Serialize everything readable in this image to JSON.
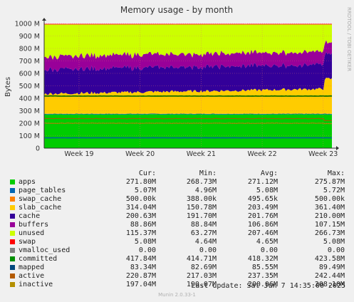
{
  "chart_data": {
    "type": "area",
    "title": "Memory usage - by month",
    "ylabel": "Bytes",
    "watermark": "RRDTOOL / TOBI OETIKER",
    "ylim": [
      0,
      1000000000
    ],
    "yticks": [
      {
        "v": 0,
        "label": "0"
      },
      {
        "v": 100000000,
        "label": "100 M"
      },
      {
        "v": 200000000,
        "label": "200 M"
      },
      {
        "v": 300000000,
        "label": "300 M"
      },
      {
        "v": 400000000,
        "label": "400 M"
      },
      {
        "v": 500000000,
        "label": "500 M"
      },
      {
        "v": 600000000,
        "label": "600 M"
      },
      {
        "v": 700000000,
        "label": "700 M"
      },
      {
        "v": 800000000,
        "label": "800 M"
      },
      {
        "v": 900000000,
        "label": "900 M"
      },
      {
        "v": 1000000000,
        "label": "1000 M"
      }
    ],
    "xlim": [
      0,
      33
    ],
    "xticks": [
      {
        "v": 4,
        "label": "Week 19"
      },
      {
        "v": 11,
        "label": "Week 20"
      },
      {
        "v": 18,
        "label": "Week 21"
      },
      {
        "v": 25,
        "label": "Week 22"
      },
      {
        "v": 32,
        "label": "Week 23"
      }
    ],
    "stacked_series": [
      {
        "name": "apps",
        "color": "#00cc00",
        "base": 271,
        "var": 4
      },
      {
        "name": "page_tables",
        "color": "#0066b3",
        "base": 5,
        "var": 0.3
      },
      {
        "name": "swap_cache",
        "color": "#ff8000",
        "base": 0.5,
        "var": 0
      },
      {
        "name": "slab_cache",
        "color": "#ffcc00",
        "base": 200,
        "var": 60
      },
      {
        "name": "cache",
        "color": "#330099",
        "base": 200,
        "var": 18
      },
      {
        "name": "buffers",
        "color": "#990099",
        "base": 95,
        "var": 10
      },
      {
        "name": "unused",
        "color": "#ccff00",
        "base": 0,
        "var": 0
      },
      {
        "name": "swap",
        "color": "#ff0000",
        "base": 5,
        "var": 0.3
      }
    ],
    "line_series": [
      {
        "name": "committed",
        "color": "#006600",
        "value": 418
      },
      {
        "name": "mapped",
        "color": "#006699",
        "value": 83
      },
      {
        "name": "active",
        "color": "#996600",
        "value": 237
      },
      {
        "name": "inactive",
        "color": "#b08000",
        "value": 200
      }
    ],
    "total_memory": 1000
  },
  "legend": {
    "headers": {
      "cur": "Cur:",
      "min": "Min:",
      "avg": "Avg:",
      "max": "Max:"
    },
    "rows": [
      {
        "name": "apps",
        "color": "#00cc00",
        "cur": "271.80M",
        "min": "268.73M",
        "avg": "271.12M",
        "max": "275.87M"
      },
      {
        "name": "page_tables",
        "color": "#0066b3",
        "cur": "5.07M",
        "min": "4.96M",
        "avg": "5.08M",
        "max": "5.72M"
      },
      {
        "name": "swap_cache",
        "color": "#ff8000",
        "cur": "500.00k",
        "min": "388.00k",
        "avg": "495.65k",
        "max": "500.00k"
      },
      {
        "name": "slab_cache",
        "color": "#ffcc00",
        "cur": "314.04M",
        "min": "150.78M",
        "avg": "203.49M",
        "max": "361.40M"
      },
      {
        "name": "cache",
        "color": "#330099",
        "cur": "200.63M",
        "min": "191.70M",
        "avg": "201.76M",
        "max": "210.00M"
      },
      {
        "name": "buffers",
        "color": "#990099",
        "cur": "88.86M",
        "min": "88.84M",
        "avg": "106.86M",
        "max": "107.15M"
      },
      {
        "name": "unused",
        "color": "#ccff00",
        "cur": "115.37M",
        "min": "63.27M",
        "avg": "207.46M",
        "max": "266.73M"
      },
      {
        "name": "swap",
        "color": "#ff0000",
        "cur": "5.08M",
        "min": "4.64M",
        "avg": "4.65M",
        "max": "5.08M"
      },
      {
        "name": "vmalloc_used",
        "color": "#808080",
        "cur": "0.00",
        "min": "0.00",
        "avg": "0.00",
        "max": "0.00"
      },
      {
        "name": "committed",
        "color": "#008f00",
        "cur": "417.84M",
        "min": "414.71M",
        "avg": "418.32M",
        "max": "423.58M"
      },
      {
        "name": "mapped",
        "color": "#00487d",
        "cur": "83.34M",
        "min": "82.69M",
        "avg": "85.55M",
        "max": "89.49M"
      },
      {
        "name": "active",
        "color": "#b35a00",
        "cur": "220.87M",
        "min": "217.03M",
        "avg": "237.35M",
        "max": "242.44M"
      },
      {
        "name": "inactive",
        "color": "#b38f00",
        "cur": "197.04M",
        "min": "190.07M",
        "avg": "200.06M",
        "max": "208.10M"
      }
    ]
  },
  "footer": {
    "last_update": "Last update:  Sat Jun  7 14:35:00 2025",
    "version": "Munin 2.0.33-1"
  }
}
